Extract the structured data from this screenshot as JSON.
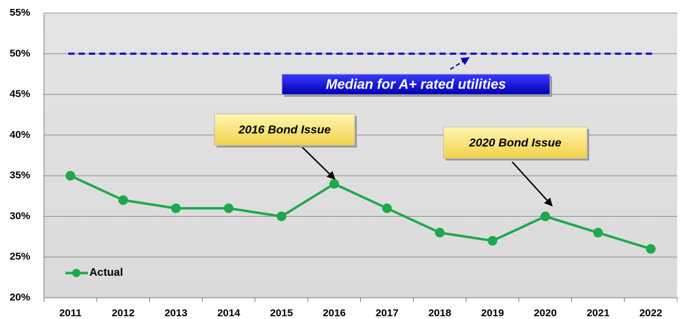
{
  "chart_data": {
    "type": "line",
    "categories": [
      "2011",
      "2012",
      "2013",
      "2014",
      "2015",
      "2016",
      "2017",
      "2018",
      "2019",
      "2020",
      "2021",
      "2022"
    ],
    "series": [
      {
        "name": "Actual",
        "color": "#1ea84a",
        "values": [
          35,
          32,
          31,
          31,
          30,
          34,
          31,
          28,
          27,
          30,
          28,
          26
        ]
      }
    ],
    "reference_lines": [
      {
        "value": 50,
        "color": "#0000c8"
      }
    ],
    "annotations": [
      "Median for A+ rated utilities",
      "2016 Bond Issue",
      "2020 Bond Issue"
    ],
    "ylim": [
      20,
      55
    ],
    "yticks": [
      {
        "value": 20,
        "label": "20%"
      },
      {
        "value": 25,
        "label": "25%"
      },
      {
        "value": 30,
        "label": "30%"
      },
      {
        "value": 35,
        "label": "35%"
      },
      {
        "value": 40,
        "label": "40%"
      },
      {
        "value": 45,
        "label": "45%"
      },
      {
        "value": 50,
        "label": "50%"
      },
      {
        "value": 55,
        "label": "55%"
      }
    ],
    "grid": true,
    "legend": "lower left"
  }
}
